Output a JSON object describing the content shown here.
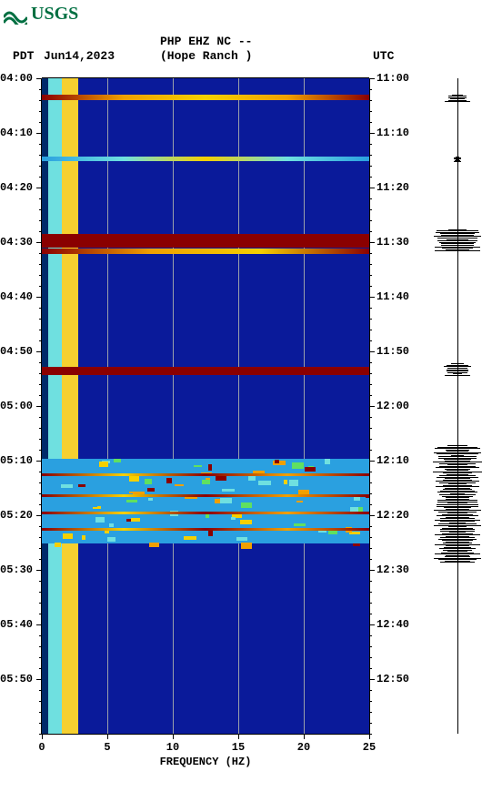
{
  "logo": {
    "text": "USGS",
    "color": "#006F41"
  },
  "header": {
    "station": "PHP EHZ NC --",
    "site": "(Hope Ranch )",
    "pdt_label": "PDT",
    "date": "Jun14,2023",
    "utc_label": "UTC"
  },
  "spectrogram": {
    "type": "heatmap",
    "x_axis": {
      "label": "FREQUENCY (HZ)",
      "min": 0,
      "max": 25,
      "ticks": [
        0,
        5,
        10,
        15,
        20,
        25
      ],
      "label_fontsize": 12
    },
    "y_left": {
      "label": "PDT",
      "start": "04:00",
      "end": "06:00",
      "ticks": [
        "04:00",
        "04:10",
        "04:20",
        "04:30",
        "04:40",
        "04:50",
        "05:00",
        "05:10",
        "05:20",
        "05:30",
        "05:40",
        "05:50"
      ]
    },
    "y_right": {
      "label": "UTC",
      "start": "11:00",
      "end": "13:00",
      "ticks": [
        "11:00",
        "11:10",
        "11:20",
        "11:30",
        "11:40",
        "11:50",
        "12:00",
        "12:10",
        "12:20",
        "12:30",
        "12:40",
        "12:50"
      ]
    },
    "background_color": "#0a1a9a",
    "gridline_color": "#9aa0aa",
    "low_freq_columns": [
      {
        "left_pct": 0,
        "width_pct": 2,
        "gradient": "linear-gradient(to bottom, #002a6a, #002a6a)"
      },
      {
        "left_pct": 2,
        "width_pct": 4,
        "gradient": "linear-gradient(to bottom, #6fe0e0, #6fe0e0)"
      },
      {
        "left_pct": 6,
        "width_pct": 5,
        "gradient": "linear-gradient(to bottom, #f6d030, #f6d030)"
      }
    ],
    "events": [
      {
        "top_pct": 2.5,
        "height_pct": 0.8,
        "style": "linear-gradient(to right,#8a0000,#f0a000,#f5d000,#f0a000,#8a0000)",
        "amp": 0.35
      },
      {
        "top_pct": 11.9,
        "height_pct": 0.7,
        "style": "linear-gradient(to right,#2aa0e0,#6fe0e0,#f5d000,#6fe0e0,#2aa0e0)",
        "amp": 0.2
      },
      {
        "top_pct": 23.8,
        "height_pct": 2.0,
        "style": "#8a0000",
        "amp": 0.7
      },
      {
        "top_pct": 26.0,
        "height_pct": 0.8,
        "style": "linear-gradient(to right,#8a0000,#f0a000,#f5d000,#8a0000)",
        "amp": 0.4
      },
      {
        "top_pct": 44.0,
        "height_pct": 1.3,
        "style": "#8a0000",
        "amp": 0.5
      },
      {
        "top_pct": 58.0,
        "height_pct": 13.0,
        "style": "noise",
        "amp": 0.6
      }
    ],
    "waveform_bursts": [
      {
        "top_pct": 2.5,
        "height_pct": 1.2,
        "width": 0.35
      },
      {
        "top_pct": 12.0,
        "height_pct": 0.8,
        "width": 0.12
      },
      {
        "top_pct": 23.0,
        "height_pct": 3.5,
        "width": 0.75
      },
      {
        "top_pct": 43.5,
        "height_pct": 2.0,
        "width": 0.45
      },
      {
        "top_pct": 56.0,
        "height_pct": 18.0,
        "width": 0.65
      }
    ]
  }
}
